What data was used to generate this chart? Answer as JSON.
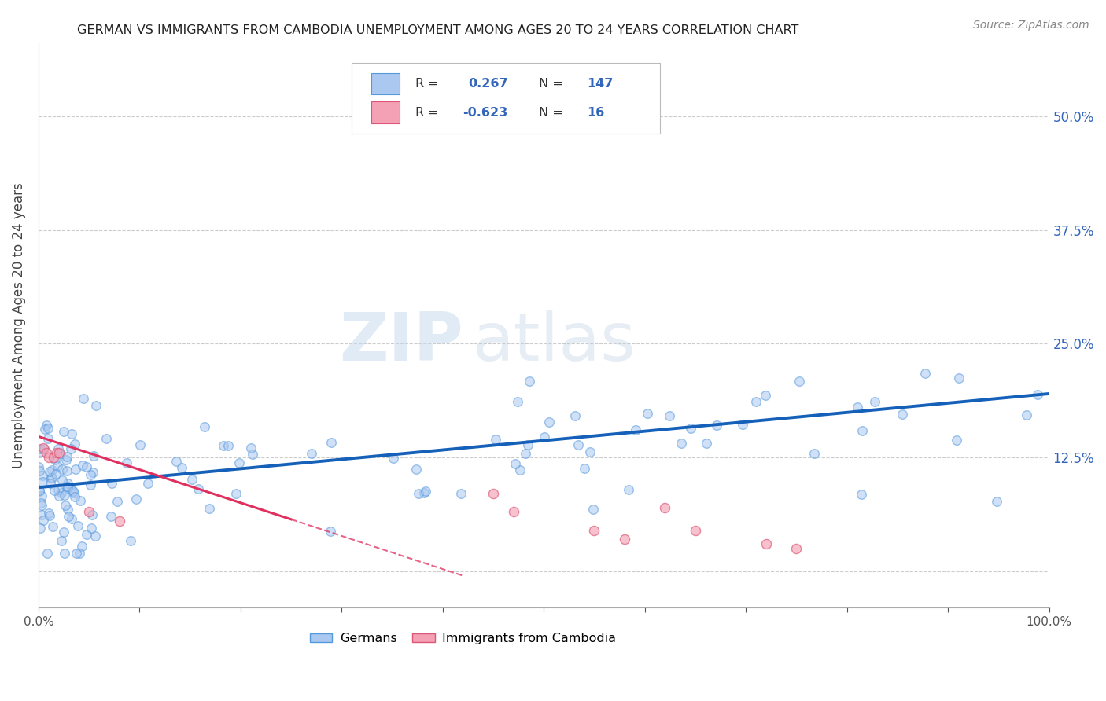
{
  "title": "GERMAN VS IMMIGRANTS FROM CAMBODIA UNEMPLOYMENT AMONG AGES 20 TO 24 YEARS CORRELATION CHART",
  "source": "Source: ZipAtlas.com",
  "ylabel": "Unemployment Among Ages 20 to 24 years",
  "xlim": [
    0.0,
    1.0
  ],
  "ylim": [
    -0.04,
    0.58
  ],
  "yticks": [
    0.0,
    0.125,
    0.25,
    0.375,
    0.5
  ],
  "ytick_labels": [
    "",
    "12.5%",
    "25.0%",
    "37.5%",
    "50.0%"
  ],
  "watermark_zip": "ZIP",
  "watermark_atlas": "atlas",
  "legend_german_R": "0.267",
  "legend_german_N": "147",
  "legend_cambodia_R": "-0.623",
  "legend_cambodia_N": "16",
  "german_color": "#aac8f0",
  "cambodia_color": "#f4a0b5",
  "german_line_color": "#1560b8",
  "cambodia_line_color": "#e03060",
  "background_color": "#ffffff",
  "title_color": "#222222",
  "axis_label_color": "#444444",
  "tick_label_color": "#555555",
  "right_tick_color": "#3366bb",
  "grid_color": "#cccccc",
  "grid_style": "--",
  "scatter_size": 70,
  "scatter_alpha": 0.55,
  "scatter_linewidth": 1.0,
  "scatter_edgecolor_german": "#5599dd",
  "scatter_edgecolor_cambodia": "#dd5577",
  "german_line_y_start": 0.092,
  "german_line_y_end": 0.195,
  "cambodia_line_y_start": 0.148,
  "cambodia_line_y_end": -0.005,
  "cambodia_line_solid_end_x": 0.25,
  "cambodia_line_dash_start_x": 0.25,
  "cambodia_line_dash_end_x": 0.42
}
